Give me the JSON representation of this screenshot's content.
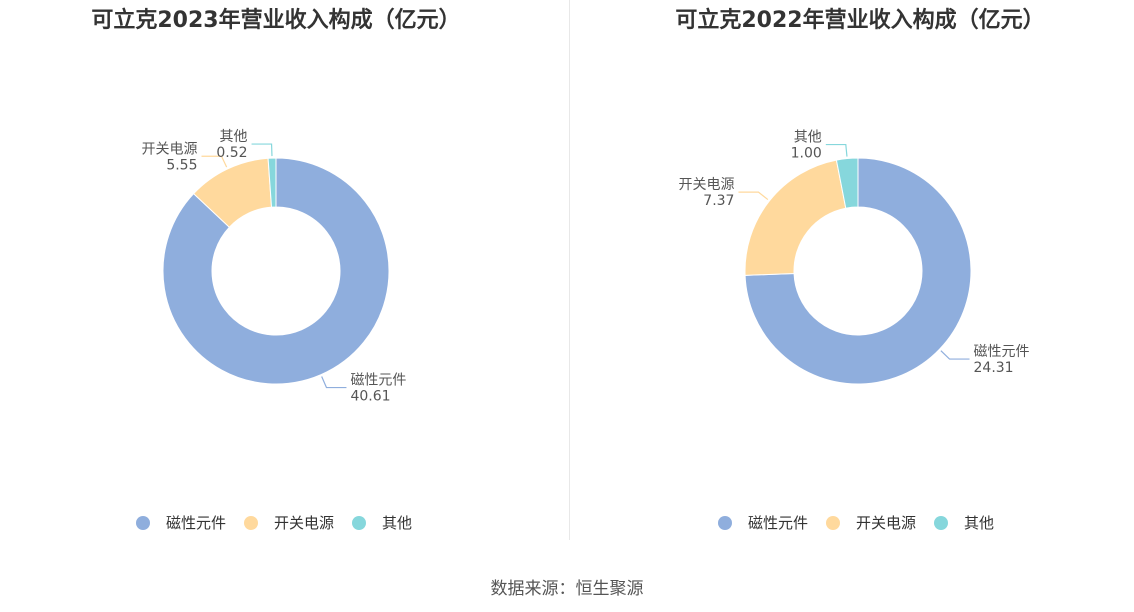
{
  "colors": {
    "磁性元件": "#8faedd",
    "开关电源": "#ffd99d",
    "其他": "#86d7dc",
    "line": "#aaaaaa"
  },
  "chart_data": [
    {
      "type": "pie",
      "title": "可立克2023年营业收入构成（亿元）",
      "categories": [
        "磁性元件",
        "开关电源",
        "其他"
      ],
      "values": [
        40.61,
        5.55,
        0.52
      ],
      "value_labels": [
        "40.61",
        "5.55",
        "0.52"
      ],
      "legend": "bottom-center"
    },
    {
      "type": "pie",
      "title": "可立克2022年营业收入构成（亿元）",
      "categories": [
        "磁性元件",
        "开关电源",
        "其他"
      ],
      "values": [
        24.31,
        7.37,
        1.0
      ],
      "value_labels": [
        "24.31",
        "7.37",
        "1.00"
      ],
      "legend": "bottom-center"
    }
  ],
  "source": "数据来源：恒生聚源"
}
